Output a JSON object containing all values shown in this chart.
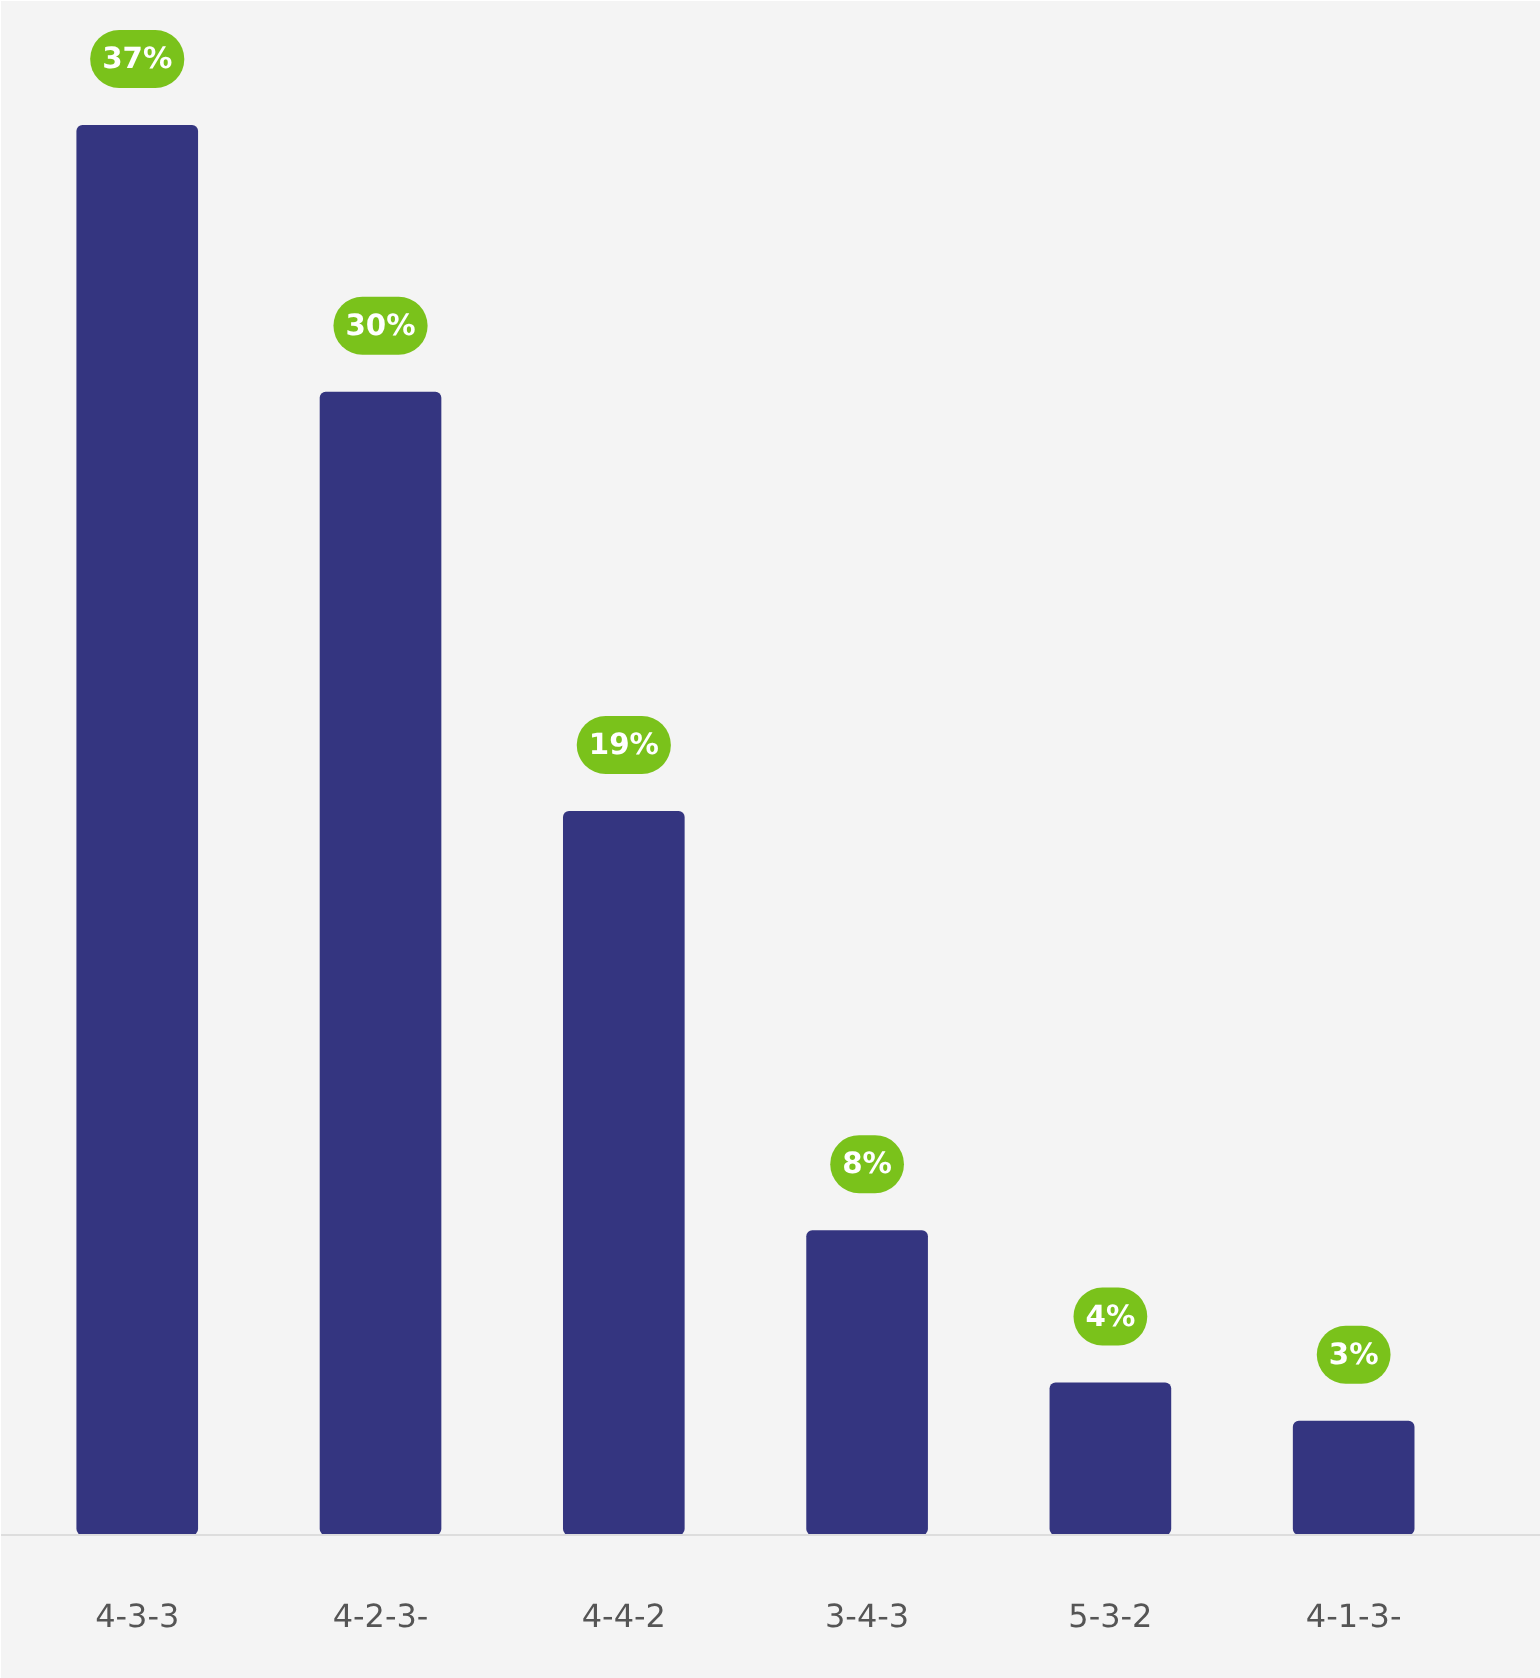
{
  "chart_data": {
    "type": "bar",
    "categories": [
      "4-3-3",
      "4-2-3-",
      "4-4-2",
      "3-4-3",
      "5-3-2",
      "4-1-3-"
    ],
    "values": [
      37,
      30,
      19,
      8,
      4,
      3
    ],
    "value_labels": [
      "37%",
      "30%",
      "19%",
      "8%",
      "4%",
      "3%"
    ],
    "color": "#343580",
    "grid": false
  }
}
